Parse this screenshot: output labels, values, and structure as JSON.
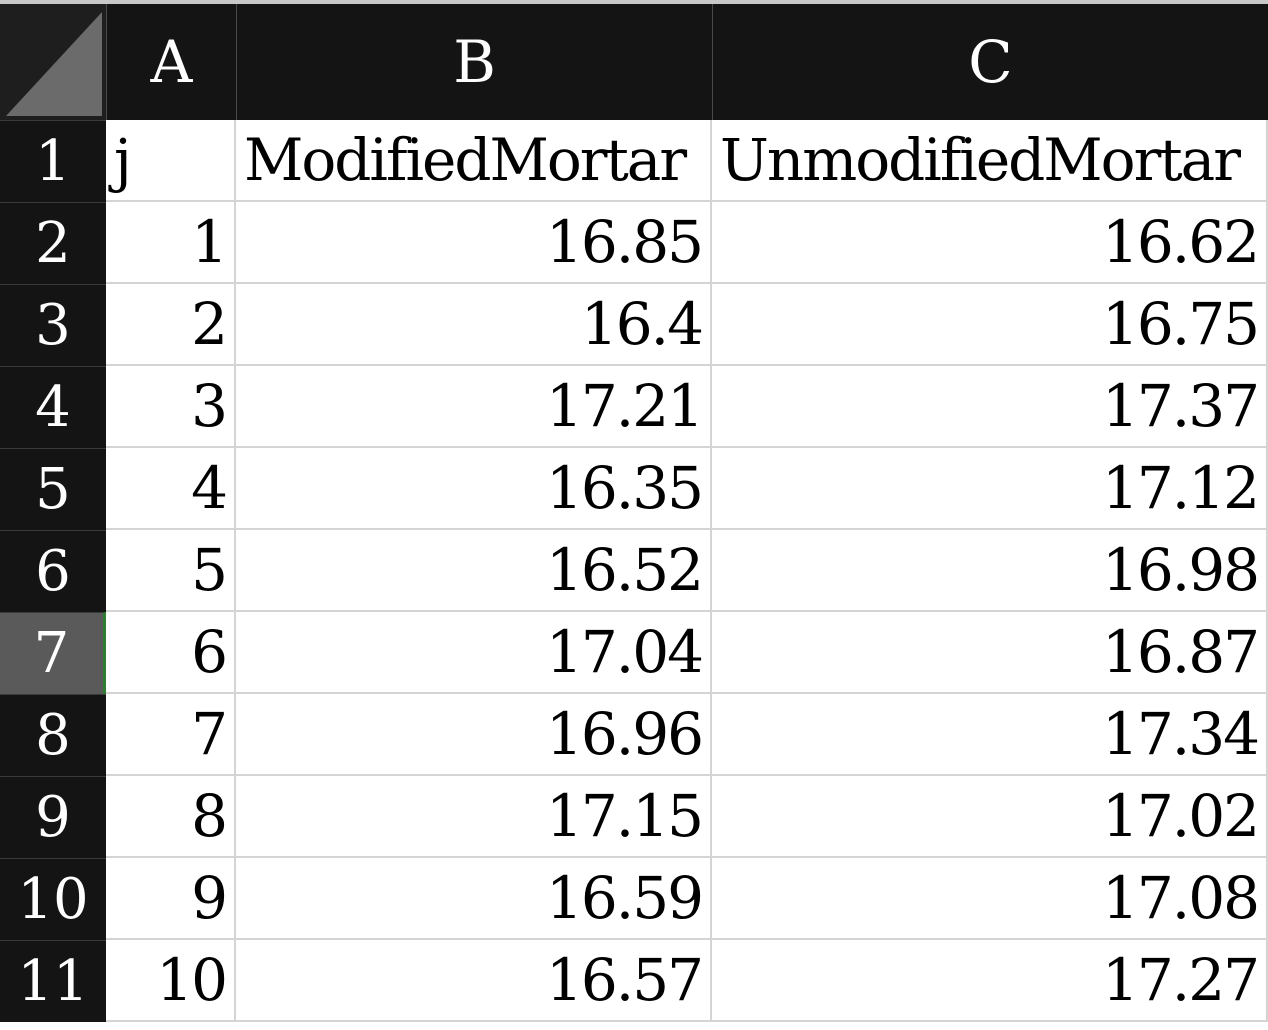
{
  "columns": [
    "A",
    "B",
    "C"
  ],
  "rows": [
    {
      "num": "1",
      "a": "j",
      "b": "ModifiedMortar",
      "c": "UnmodifiedMortar"
    },
    {
      "num": "2",
      "a": "1",
      "b": "16.85",
      "c": "16.62"
    },
    {
      "num": "3",
      "a": "2",
      "b": "16.4",
      "c": "16.75"
    },
    {
      "num": "4",
      "a": "3",
      "b": "17.21",
      "c": "17.37"
    },
    {
      "num": "5",
      "a": "4",
      "b": "16.35",
      "c": "17.12"
    },
    {
      "num": "6",
      "a": "5",
      "b": "16.52",
      "c": "16.98"
    },
    {
      "num": "7",
      "a": "6",
      "b": "17.04",
      "c": "16.87"
    },
    {
      "num": "8",
      "a": "7",
      "b": "16.96",
      "c": "17.34"
    },
    {
      "num": "9",
      "a": "8",
      "b": "17.15",
      "c": "17.02"
    },
    {
      "num": "10",
      "a": "9",
      "b": "16.59",
      "c": "17.08"
    },
    {
      "num": "11",
      "a": "10",
      "b": "16.57",
      "c": "17.27"
    }
  ],
  "active_row": "7",
  "colors": {
    "header_bg": "#141414",
    "active_row_header_bg": "#5a5a5a",
    "selection_accent": "#2e7d32",
    "gridline": "#d4d4d4"
  }
}
